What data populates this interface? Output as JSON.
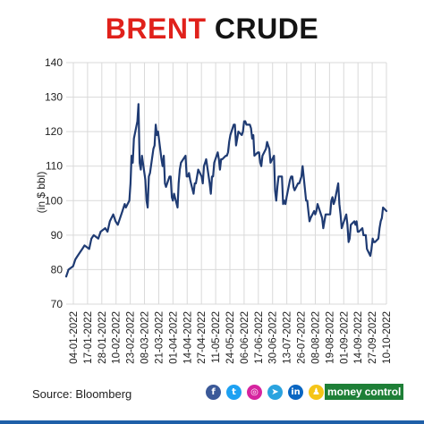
{
  "title": {
    "part1": "BRENT",
    "part2": "CRUDE"
  },
  "colors": {
    "title_red": "#e0211b",
    "line": "#1f3b73",
    "grid": "#d9d9d9",
    "brand_green": "#1e7f37"
  },
  "footer": {
    "source": "Source: Bloomberg",
    "social_icons": [
      {
        "name": "facebook-icon",
        "glyph": "f",
        "color": "#3b5998"
      },
      {
        "name": "twitter-icon",
        "glyph": "t",
        "color": "#1da1f2"
      },
      {
        "name": "instagram-icon",
        "glyph": "◎",
        "color": "#d6249f"
      },
      {
        "name": "telegram-icon",
        "glyph": "➤",
        "color": "#2aa3df"
      },
      {
        "name": "linkedin-icon",
        "glyph": "in",
        "color": "#0a66c2"
      },
      {
        "name": "snapchat-icon",
        "glyph": "♟",
        "color": "#f5c518"
      }
    ],
    "brand_part1": "money",
    "brand_part2": "control"
  },
  "chart_data": {
    "type": "line",
    "title": "BRENT CRUDE",
    "xlabel": "",
    "ylabel": "(in $ bbl)",
    "ylim": [
      70,
      140
    ],
    "yticks": [
      70,
      80,
      90,
      100,
      110,
      120,
      130,
      140
    ],
    "xlim": [
      "2022-01-04",
      "2022-10-10"
    ],
    "grid": true,
    "x_tick_labels": [
      "04-01-2022",
      "17-01-2022",
      "28-01-2022",
      "10-02-2022",
      "23-02-2022",
      "08-03-2022",
      "21-03-2022",
      "01-04-2022",
      "14-04-2022",
      "27-04-2022",
      "11-05-2022",
      "24-05-2022",
      "06-06-2022",
      "17-06-2022",
      "30-06-2022",
      "13-07-2022",
      "26-07-2022",
      "08-08-2022",
      "19-08-2022",
      "01-09-2022",
      "14-09-2022",
      "27-09-2022",
      "10-10-2022"
    ],
    "series": [
      {
        "values": [
          [
            "2022-01-04",
            78
          ],
          [
            "2022-01-06",
            80
          ],
          [
            "2022-01-10",
            81
          ],
          [
            "2022-01-12",
            83
          ],
          [
            "2022-01-14",
            84
          ],
          [
            "2022-01-18",
            86
          ],
          [
            "2022-01-20",
            87
          ],
          [
            "2022-01-24",
            86
          ],
          [
            "2022-01-26",
            89
          ],
          [
            "2022-01-28",
            90
          ],
          [
            "2022-02-01",
            89
          ],
          [
            "2022-02-03",
            91
          ],
          [
            "2022-02-07",
            92
          ],
          [
            "2022-02-09",
            91
          ],
          [
            "2022-02-11",
            94
          ],
          [
            "2022-02-14",
            96
          ],
          [
            "2022-02-16",
            94
          ],
          [
            "2022-02-18",
            93
          ],
          [
            "2022-02-22",
            97
          ],
          [
            "2022-02-24",
            99
          ],
          [
            "2022-02-25",
            98
          ],
          [
            "2022-02-28",
            100
          ],
          [
            "2022-03-01",
            105
          ],
          [
            "2022-03-02",
            113
          ],
          [
            "2022-03-03",
            111
          ],
          [
            "2022-03-04",
            118
          ],
          [
            "2022-03-07",
            123
          ],
          [
            "2022-03-08",
            128
          ],
          [
            "2022-03-09",
            111
          ],
          [
            "2022-03-10",
            109
          ],
          [
            "2022-03-11",
            113
          ],
          [
            "2022-03-14",
            106
          ],
          [
            "2022-03-15",
            100
          ],
          [
            "2022-03-16",
            98
          ],
          [
            "2022-03-17",
            107
          ],
          [
            "2022-03-18",
            108
          ],
          [
            "2022-03-21",
            115
          ],
          [
            "2022-03-22",
            116
          ],
          [
            "2022-03-23",
            122
          ],
          [
            "2022-03-24",
            119
          ],
          [
            "2022-03-25",
            120
          ],
          [
            "2022-03-28",
            112
          ],
          [
            "2022-03-29",
            110
          ],
          [
            "2022-03-30",
            113
          ],
          [
            "2022-03-31",
            105
          ],
          [
            "2022-04-01",
            104
          ],
          [
            "2022-04-04",
            107
          ],
          [
            "2022-04-05",
            107
          ],
          [
            "2022-04-06",
            101
          ],
          [
            "2022-04-07",
            100
          ],
          [
            "2022-04-08",
            102
          ],
          [
            "2022-04-11",
            98
          ],
          [
            "2022-04-12",
            105
          ],
          [
            "2022-04-13",
            109
          ],
          [
            "2022-04-14",
            111
          ],
          [
            "2022-04-18",
            113
          ],
          [
            "2022-04-19",
            107
          ],
          [
            "2022-04-20",
            107
          ],
          [
            "2022-04-21",
            108
          ],
          [
            "2022-04-22",
            106
          ],
          [
            "2022-04-25",
            102
          ],
          [
            "2022-04-26",
            105
          ],
          [
            "2022-04-27",
            105
          ],
          [
            "2022-04-28",
            107
          ],
          [
            "2022-04-29",
            109
          ],
          [
            "2022-05-02",
            107
          ],
          [
            "2022-05-03",
            105
          ],
          [
            "2022-05-04",
            110
          ],
          [
            "2022-05-05",
            111
          ],
          [
            "2022-05-06",
            112
          ],
          [
            "2022-05-09",
            105
          ],
          [
            "2022-05-10",
            102
          ],
          [
            "2022-05-11",
            107
          ],
          [
            "2022-05-12",
            107
          ],
          [
            "2022-05-13",
            111
          ],
          [
            "2022-05-16",
            114
          ],
          [
            "2022-05-17",
            112
          ],
          [
            "2022-05-18",
            109
          ],
          [
            "2022-05-19",
            112
          ],
          [
            "2022-05-20",
            112
          ],
          [
            "2022-05-23",
            113
          ],
          [
            "2022-05-24",
            113
          ],
          [
            "2022-05-25",
            114
          ],
          [
            "2022-05-26",
            117
          ],
          [
            "2022-05-27",
            119
          ],
          [
            "2022-05-30",
            122
          ],
          [
            "2022-05-31",
            122
          ],
          [
            "2022-06-01",
            116
          ],
          [
            "2022-06-02",
            118
          ],
          [
            "2022-06-03",
            120
          ],
          [
            "2022-06-06",
            119
          ],
          [
            "2022-06-07",
            120
          ],
          [
            "2022-06-08",
            123
          ],
          [
            "2022-06-09",
            123
          ],
          [
            "2022-06-10",
            122
          ],
          [
            "2022-06-13",
            122
          ],
          [
            "2022-06-14",
            121
          ],
          [
            "2022-06-15",
            118
          ],
          [
            "2022-06-16",
            119
          ],
          [
            "2022-06-17",
            113
          ],
          [
            "2022-06-20",
            114
          ],
          [
            "2022-06-21",
            114
          ],
          [
            "2022-06-22",
            111
          ],
          [
            "2022-06-23",
            110
          ],
          [
            "2022-06-24",
            113
          ],
          [
            "2022-06-27",
            115
          ],
          [
            "2022-06-28",
            117
          ],
          [
            "2022-06-29",
            116
          ],
          [
            "2022-06-30",
            115
          ],
          [
            "2022-07-01",
            111
          ],
          [
            "2022-07-04",
            113
          ],
          [
            "2022-07-05",
            103
          ],
          [
            "2022-07-06",
            100
          ],
          [
            "2022-07-07",
            104
          ],
          [
            "2022-07-08",
            107
          ],
          [
            "2022-07-11",
            107
          ],
          [
            "2022-07-12",
            99
          ],
          [
            "2022-07-13",
            100
          ],
          [
            "2022-07-14",
            99
          ],
          [
            "2022-07-15",
            101
          ],
          [
            "2022-07-18",
            106
          ],
          [
            "2022-07-19",
            107
          ],
          [
            "2022-07-20",
            107
          ],
          [
            "2022-07-21",
            104
          ],
          [
            "2022-07-22",
            103
          ],
          [
            "2022-07-25",
            105
          ],
          [
            "2022-07-26",
            105
          ],
          [
            "2022-07-27",
            106
          ],
          [
            "2022-07-28",
            107
          ],
          [
            "2022-07-29",
            110
          ],
          [
            "2022-08-01",
            100
          ],
          [
            "2022-08-02",
            100
          ],
          [
            "2022-08-03",
            97
          ],
          [
            "2022-08-04",
            94
          ],
          [
            "2022-08-05",
            95
          ],
          [
            "2022-08-08",
            97
          ],
          [
            "2022-08-09",
            96
          ],
          [
            "2022-08-10",
            97
          ],
          [
            "2022-08-11",
            99
          ],
          [
            "2022-08-12",
            98
          ],
          [
            "2022-08-15",
            95
          ],
          [
            "2022-08-16",
            92
          ],
          [
            "2022-08-17",
            94
          ],
          [
            "2022-08-18",
            96
          ],
          [
            "2022-08-19",
            96
          ],
          [
            "2022-08-22",
            96
          ],
          [
            "2022-08-23",
            100
          ],
          [
            "2022-08-24",
            101
          ],
          [
            "2022-08-25",
            99
          ],
          [
            "2022-08-26",
            100
          ],
          [
            "2022-08-29",
            105
          ],
          [
            "2022-08-30",
            99
          ],
          [
            "2022-08-31",
            96
          ],
          [
            "2022-09-01",
            92
          ],
          [
            "2022-09-02",
            93
          ],
          [
            "2022-09-05",
            96
          ],
          [
            "2022-09-06",
            93
          ],
          [
            "2022-09-07",
            88
          ],
          [
            "2022-09-08",
            89
          ],
          [
            "2022-09-09",
            93
          ],
          [
            "2022-09-12",
            94
          ],
          [
            "2022-09-13",
            93
          ],
          [
            "2022-09-14",
            94
          ],
          [
            "2022-09-15",
            91
          ],
          [
            "2022-09-16",
            91
          ],
          [
            "2022-09-19",
            92
          ],
          [
            "2022-09-20",
            90
          ],
          [
            "2022-09-21",
            90
          ],
          [
            "2022-09-22",
            90
          ],
          [
            "2022-09-23",
            86
          ],
          [
            "2022-09-26",
            84
          ],
          [
            "2022-09-27",
            86
          ],
          [
            "2022-09-28",
            89
          ],
          [
            "2022-09-29",
            88
          ],
          [
            "2022-09-30",
            88
          ],
          [
            "2022-10-03",
            89
          ],
          [
            "2022-10-04",
            92
          ],
          [
            "2022-10-05",
            94
          ],
          [
            "2022-10-06",
            95
          ],
          [
            "2022-10-07",
            98
          ],
          [
            "2022-10-10",
            97
          ]
        ]
      }
    ]
  }
}
